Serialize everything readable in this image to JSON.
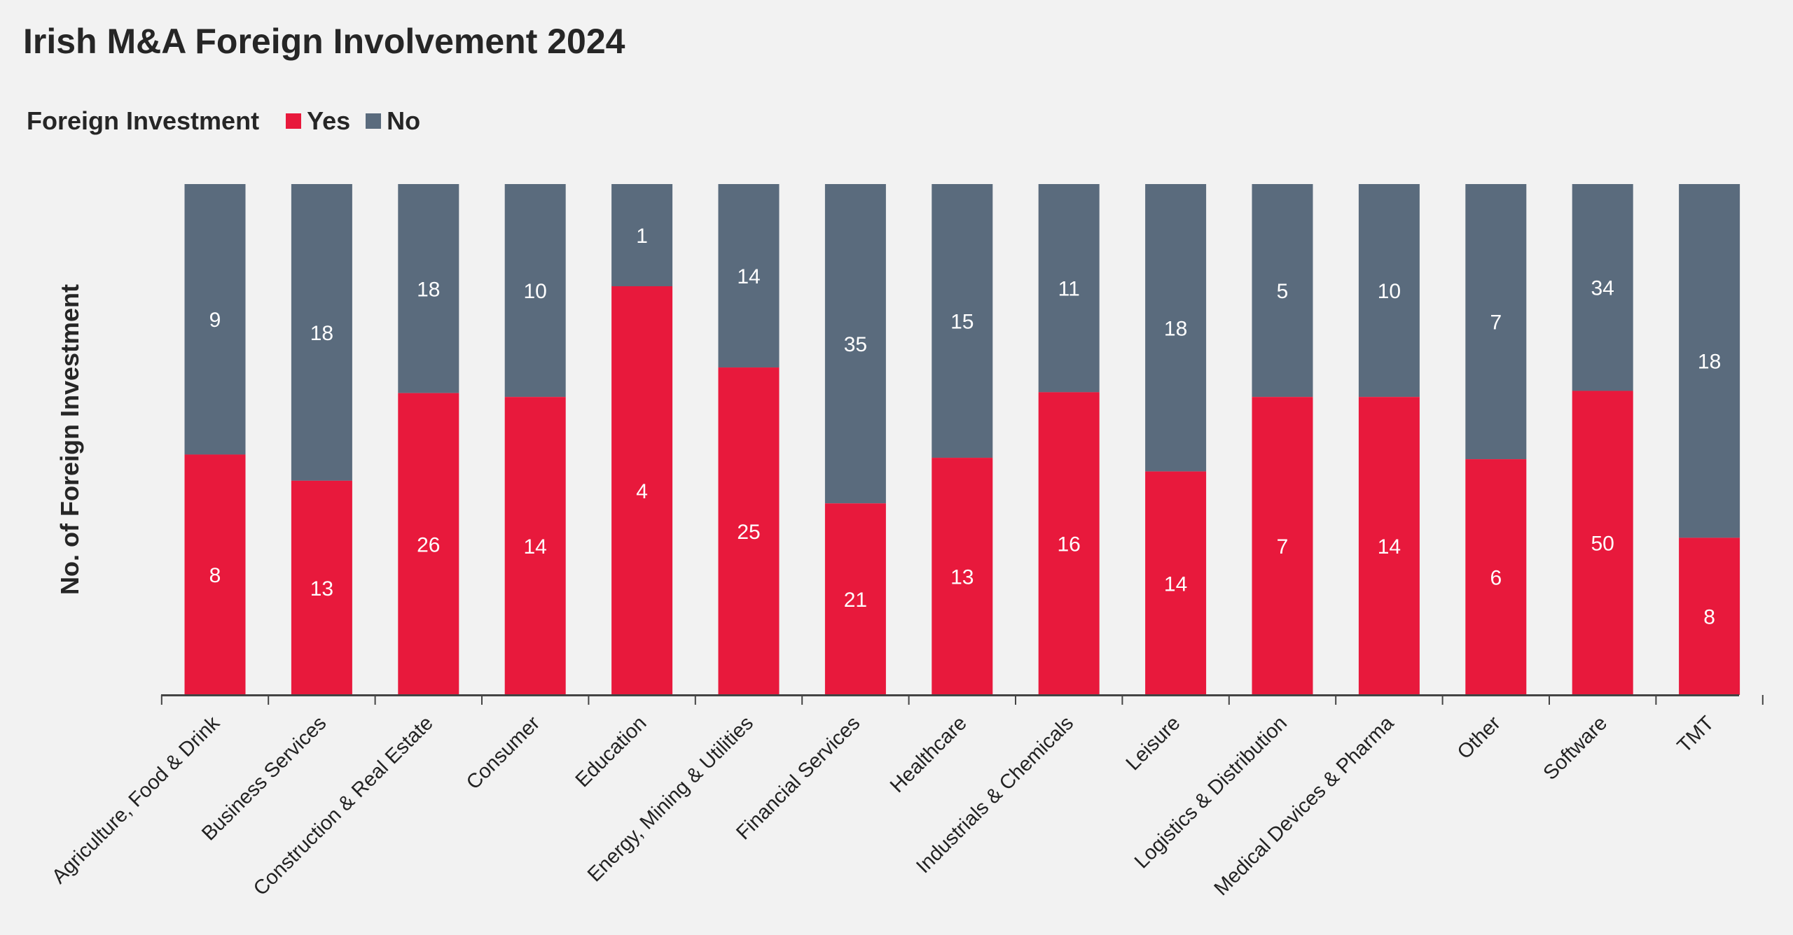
{
  "chart_data": {
    "type": "bar",
    "stacked": true,
    "normalized": true,
    "title": "Irish M&A Foreign Involvement 2024",
    "ylabel": "No. of Foreign Investment",
    "legend": {
      "title": "Foreign Investment",
      "placement": "top-left",
      "items": [
        {
          "label": "Yes",
          "color": "#e8193c"
        },
        {
          "label": "No",
          "color": "#5a6b7d"
        }
      ]
    },
    "categories": [
      "Agriculture, Food & Drink",
      "Business Services",
      "Construction & Real Estate",
      "Consumer",
      "Education",
      "Energy, Mining & Utilities",
      "Financial Services",
      "Healthcare",
      "Industrials & Chemicals",
      "Leisure",
      "Logistics & Distribution",
      "Medical Devices & Pharma",
      "Other",
      "Software",
      "TMT"
    ],
    "series": [
      {
        "name": "Yes",
        "color": "#e8193c",
        "values": [
          8,
          13,
          26,
          14,
          4,
          25,
          21,
          13,
          16,
          14,
          7,
          14,
          6,
          50,
          8
        ]
      },
      {
        "name": "No",
        "color": "#5a6b7d",
        "values": [
          9,
          18,
          18,
          10,
          1,
          14,
          35,
          15,
          11,
          18,
          5,
          10,
          7,
          34,
          18
        ]
      }
    ],
    "grid": false
  }
}
